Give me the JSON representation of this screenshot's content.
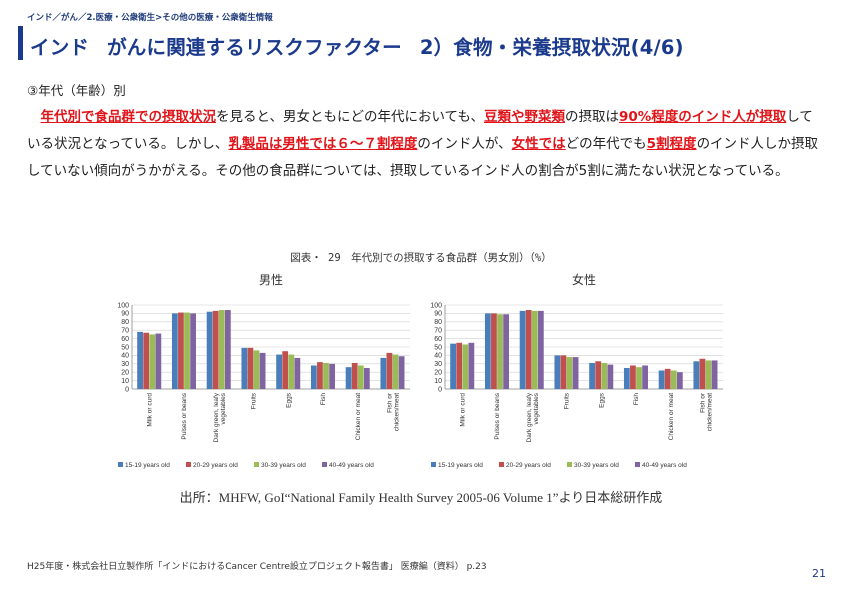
{
  "breadcrumb": "インド／がん／2.医療・公衆衛生>その他の医療・公衆衛生情報",
  "title": {
    "part1": "インド",
    "part2": "がんに関連するリスクファクター",
    "part3": "2）食物・栄養摂取状況(4/6)"
  },
  "section_label": "③年代（年齢）別",
  "paragraph": {
    "s1": "年代別で食品群での摂取状況",
    "s2": "を見ると、男女ともにどの年代においても、",
    "s3": "豆類や野菜類",
    "s4": "の摂取は",
    "s5": "90%程度のインド人が摂取",
    "s6": "している状況となっている。しかし、",
    "s7": "乳製品は男性では６～７割程度",
    "s8": "のインド人が、",
    "s9": "女性では",
    "s10": "どの年代でも",
    "s11": "5割程度",
    "s12": "のインド人しか摂取していない傾向がうかがえる。その他の食品群については、摂取しているインド人の割合が5割に満たない状況となっている。"
  },
  "figure_caption": "図表・ 29　年代別での摂取する食品群（男女別）（%）",
  "source": "出所：MHFW, GoI“National Family Health Survey 2005-06 Volume 1”より日本総研作成",
  "footer": "H25年度・株式会社日立製作所「インドにおけるCancer Centre設立プロジェクト報告書」 医療編（資料） p.23",
  "page_number": "21",
  "colors": {
    "title": "#1b3a8c",
    "highlight": "#e0151a"
  },
  "chart_data": [
    {
      "type": "bar",
      "title": "男性",
      "categories": [
        "Milk or curd",
        "Pulses or beans",
        "Dark green, leafy vegetables",
        "Fruits",
        "Eggs",
        "Fish",
        "Chicken or meat",
        "Fish or chicken/meat"
      ],
      "series": [
        {
          "name": "15-19  years old",
          "color": "#4a7ebb",
          "values": [
            68,
            90,
            92,
            49,
            41,
            28,
            26,
            37
          ]
        },
        {
          "name": "20-29  years old",
          "color": "#c0504d",
          "values": [
            67,
            91,
            93,
            49,
            45,
            32,
            31,
            43
          ]
        },
        {
          "name": "30-39  years old",
          "color": "#9bbb59",
          "values": [
            65,
            91,
            94,
            46,
            41,
            31,
            28,
            41
          ]
        },
        {
          "name": "40-49  years old",
          "color": "#8064a2",
          "values": [
            66,
            90,
            94,
            43,
            37,
            30,
            25,
            39
          ]
        }
      ],
      "ylim": [
        0,
        100
      ],
      "yticks": [
        "0",
        "10",
        "20",
        "30",
        "40",
        "50",
        "60",
        "70",
        "80",
        "90",
        "100"
      ],
      "grid": true,
      "legend": "bottom"
    },
    {
      "type": "bar",
      "title": "女性",
      "categories": [
        "Milk or curd",
        "Pulses or beans",
        "Dark green, leafy vegetables",
        "Fruits",
        "Eggs",
        "Fish",
        "Chicken or meat",
        "Fish or chicken/meat"
      ],
      "series": [
        {
          "name": "15-19  years old",
          "color": "#4a7ebb",
          "values": [
            54,
            90,
            93,
            40,
            31,
            25,
            22,
            33
          ]
        },
        {
          "name": "20-29  years old",
          "color": "#c0504d",
          "values": [
            55,
            90,
            94,
            40,
            33,
            28,
            24,
            36
          ]
        },
        {
          "name": "30-39  years old",
          "color": "#9bbb59",
          "values": [
            53,
            89,
            93,
            38,
            31,
            26,
            22,
            34
          ]
        },
        {
          "name": "40-49  years old",
          "color": "#8064a2",
          "values": [
            55,
            89,
            93,
            38,
            29,
            28,
            20,
            34
          ]
        }
      ],
      "ylim": [
        0,
        100
      ],
      "yticks": [
        "0",
        "10",
        "20",
        "30",
        "40",
        "50",
        "60",
        "70",
        "80",
        "90",
        "100"
      ],
      "grid": true,
      "legend": "bottom"
    }
  ]
}
